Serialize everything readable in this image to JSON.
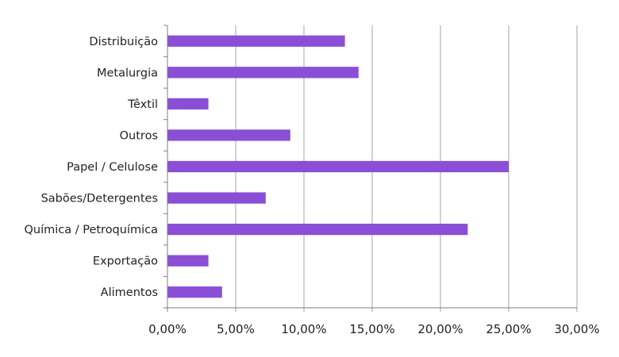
{
  "chart_data": {
    "type": "bar",
    "orientation": "horizontal",
    "categories": [
      "Distribuição",
      "Metalurgia",
      "Têxtil",
      "Outros",
      "Papel / Celulose",
      "Sabões/Detergentes",
      "Química / Petroquímica",
      "Exportação",
      "Alimentos"
    ],
    "values": [
      13,
      14,
      3,
      9,
      25,
      7.2,
      22,
      3,
      4
    ],
    "xlim": [
      0,
      30
    ],
    "x_ticks": [
      0,
      5,
      10,
      15,
      20,
      25,
      30
    ],
    "x_tick_labels": [
      "0,00%",
      "5,00%",
      "10,00%",
      "15,00%",
      "20,00%",
      "25,00%",
      "30,00%"
    ],
    "title": "",
    "xlabel": "",
    "ylabel": "",
    "grid": "vertical",
    "legend": "none",
    "bar_color": "#8a4fd6"
  }
}
